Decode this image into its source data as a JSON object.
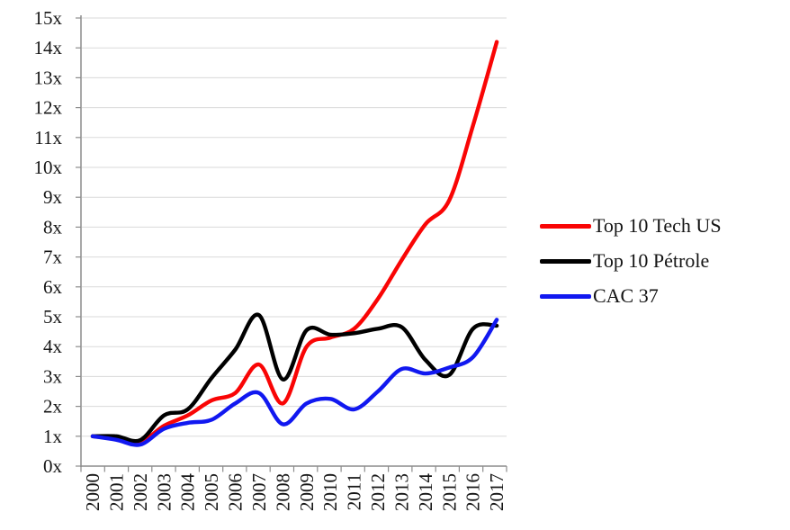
{
  "chart_data": {
    "type": "line",
    "x_ticks": [
      "2000",
      "2001",
      "2002",
      "2003",
      "2004",
      "2005",
      "2006",
      "2007",
      "2008",
      "2009",
      "2010",
      "2011",
      "2012",
      "2013",
      "2014",
      "2015",
      "2016",
      "2017"
    ],
    "y_ticks": [
      "0x",
      "1x",
      "2x",
      "3x",
      "4x",
      "5x",
      "6x",
      "7x",
      "8x",
      "9x",
      "10x",
      "11x",
      "12x",
      "13x",
      "14x",
      "15x"
    ],
    "ylim": [
      0,
      15
    ],
    "ytick_suffix": "x",
    "grid": true,
    "legend_position": "right",
    "series": [
      {
        "name": "Top 10 Tech US",
        "color": "#f90505",
        "values": [
          1.0,
          0.92,
          0.8,
          1.35,
          1.7,
          2.2,
          2.45,
          3.4,
          2.1,
          4.0,
          4.3,
          4.6,
          5.6,
          6.9,
          8.1,
          8.9,
          11.4,
          14.2
        ]
      },
      {
        "name": "Top 10 Pétrole",
        "color": "#000000",
        "values": [
          1.0,
          1.0,
          0.87,
          1.7,
          1.9,
          2.95,
          3.9,
          5.05,
          2.9,
          4.55,
          4.4,
          4.45,
          4.6,
          4.65,
          3.55,
          3.05,
          4.6,
          4.7
        ]
      },
      {
        "name": "CAC 37",
        "color": "#1118f0",
        "values": [
          1.0,
          0.88,
          0.72,
          1.25,
          1.45,
          1.55,
          2.1,
          2.45,
          1.4,
          2.1,
          2.25,
          1.9,
          2.5,
          3.25,
          3.1,
          3.3,
          3.65,
          4.9
        ]
      }
    ]
  }
}
